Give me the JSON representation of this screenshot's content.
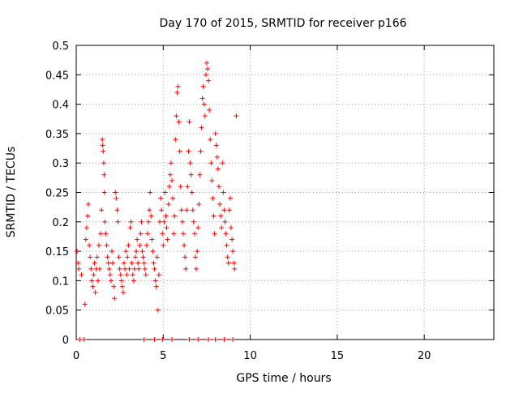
{
  "chart_data": {
    "type": "scatter",
    "title": "Day 170 of 2015, SRMTID for receiver p166",
    "xlabel": "GPS time / hours",
    "ylabel": "SRMTID / TECUs",
    "xlim": [
      0,
      24
    ],
    "ylim": [
      0,
      0.5
    ],
    "grid": true,
    "xticks": [
      0,
      5,
      10,
      15,
      20
    ],
    "xtick_labels": [
      "0",
      "5",
      "10",
      "15",
      "20"
    ],
    "yticks": [
      0,
      0.05,
      0.1,
      0.15,
      0.2,
      0.25,
      0.3,
      0.35,
      0.4,
      0.45,
      0.5
    ],
    "ytick_labels": [
      "0",
      "0.05",
      "0.1",
      "0.15",
      "0.2",
      "0.25",
      "0.3",
      "0.35",
      "0.4",
      "0.45",
      "0.5"
    ],
    "marker": "+",
    "color": "#ff0000",
    "series": [
      {
        "name": "SRMTID",
        "points": [
          [
            0.05,
            0.15
          ],
          [
            0.1,
            0.13
          ],
          [
            0.15,
            0.12
          ],
          [
            0.3,
            0.11
          ],
          [
            0.5,
            0.06
          ],
          [
            0.55,
            0.17
          ],
          [
            0.6,
            0.19
          ],
          [
            0.65,
            0.21
          ],
          [
            0.7,
            0.23
          ],
          [
            0.75,
            0.16
          ],
          [
            0.8,
            0.14
          ],
          [
            0.85,
            0.12
          ],
          [
            0.9,
            0.1
          ],
          [
            0.95,
            0.09
          ],
          [
            1.0,
            0.11
          ],
          [
            1.05,
            0.13
          ],
          [
            1.1,
            0.08
          ],
          [
            1.15,
            0.12
          ],
          [
            1.2,
            0.14
          ],
          [
            1.25,
            0.1
          ],
          [
            1.3,
            0.16
          ],
          [
            1.35,
            0.12
          ],
          [
            1.4,
            0.18
          ],
          [
            1.45,
            0.22
          ],
          [
            1.5,
            0.34
          ],
          [
            1.52,
            0.33
          ],
          [
            1.55,
            0.32
          ],
          [
            1.58,
            0.3
          ],
          [
            1.6,
            0.28
          ],
          [
            1.62,
            0.25
          ],
          [
            1.65,
            0.2
          ],
          [
            1.7,
            0.18
          ],
          [
            1.75,
            0.16
          ],
          [
            1.8,
            0.14
          ],
          [
            1.85,
            0.13
          ],
          [
            1.9,
            0.12
          ],
          [
            1.95,
            0.11
          ],
          [
            2.0,
            0.1
          ],
          [
            2.05,
            0.15
          ],
          [
            2.1,
            0.13
          ],
          [
            2.15,
            0.09
          ],
          [
            2.2,
            0.07
          ],
          [
            2.25,
            0.25
          ],
          [
            2.3,
            0.24
          ],
          [
            2.35,
            0.22
          ],
          [
            2.4,
            0.2
          ],
          [
            2.45,
            0.14
          ],
          [
            2.5,
            0.12
          ],
          [
            2.55,
            0.11
          ],
          [
            2.6,
            0.1
          ],
          [
            2.65,
            0.09
          ],
          [
            2.7,
            0.08
          ],
          [
            2.75,
            0.13
          ],
          [
            2.8,
            0.12
          ],
          [
            2.85,
            0.15
          ],
          [
            2.9,
            0.11
          ],
          [
            2.95,
            0.14
          ],
          [
            3.0,
            0.16
          ],
          [
            3.05,
            0.12
          ],
          [
            3.1,
            0.19
          ],
          [
            3.15,
            0.2
          ],
          [
            3.2,
            0.13
          ],
          [
            3.25,
            0.11
          ],
          [
            3.3,
            0.1
          ],
          [
            3.35,
            0.12
          ],
          [
            3.4,
            0.14
          ],
          [
            3.45,
            0.15
          ],
          [
            3.5,
            0.17
          ],
          [
            3.55,
            0.13
          ],
          [
            3.6,
            0.12
          ],
          [
            3.65,
            0.16
          ],
          [
            3.7,
            0.18
          ],
          [
            3.75,
            0.2
          ],
          [
            3.8,
            0.15
          ],
          [
            3.85,
            0.14
          ],
          [
            3.9,
            0.13
          ],
          [
            3.95,
            0.12
          ],
          [
            4.0,
            0.11
          ],
          [
            4.05,
            0.16
          ],
          [
            4.1,
            0.18
          ],
          [
            4.15,
            0.2
          ],
          [
            4.2,
            0.22
          ],
          [
            4.25,
            0.25
          ],
          [
            4.3,
            0.21
          ],
          [
            4.35,
            0.17
          ],
          [
            4.4,
            0.15
          ],
          [
            4.45,
            0.13
          ],
          [
            4.5,
            0.12
          ],
          [
            4.55,
            0.1
          ],
          [
            4.6,
            0.09
          ],
          [
            4.65,
            0.14
          ],
          [
            4.7,
            0.05
          ],
          [
            4.75,
            0.11
          ],
          [
            4.8,
            0.2
          ],
          [
            4.85,
            0.24
          ],
          [
            4.9,
            0.22
          ],
          [
            4.95,
            0.18
          ],
          [
            5.0,
            0.16
          ],
          [
            5.05,
            0.2
          ],
          [
            5.1,
            0.25
          ],
          [
            5.15,
            0.21
          ],
          [
            5.2,
            0.19
          ],
          [
            5.25,
            0.17
          ],
          [
            5.3,
            0.23
          ],
          [
            5.35,
            0.26
          ],
          [
            5.4,
            0.28
          ],
          [
            5.45,
            0.3
          ],
          [
            5.5,
            0.27
          ],
          [
            5.55,
            0.24
          ],
          [
            5.6,
            0.18
          ],
          [
            5.65,
            0.21
          ],
          [
            5.7,
            0.34
          ],
          [
            5.75,
            0.38
          ],
          [
            5.8,
            0.42
          ],
          [
            5.85,
            0.43
          ],
          [
            5.9,
            0.37
          ],
          [
            5.95,
            0.32
          ],
          [
            6.0,
            0.26
          ],
          [
            6.05,
            0.22
          ],
          [
            6.1,
            0.2
          ],
          [
            6.15,
            0.18
          ],
          [
            6.2,
            0.16
          ],
          [
            6.25,
            0.14
          ],
          [
            6.3,
            0.12
          ],
          [
            6.35,
            0.22
          ],
          [
            6.4,
            0.26
          ],
          [
            6.45,
            0.32
          ],
          [
            6.5,
            0.37
          ],
          [
            6.55,
            0.3
          ],
          [
            6.6,
            0.28
          ],
          [
            6.65,
            0.25
          ],
          [
            6.7,
            0.22
          ],
          [
            6.75,
            0.2
          ],
          [
            6.8,
            0.18
          ],
          [
            6.85,
            0.14
          ],
          [
            6.9,
            0.12
          ],
          [
            6.95,
            0.15
          ],
          [
            7.0,
            0.19
          ],
          [
            7.05,
            0.23
          ],
          [
            7.1,
            0.28
          ],
          [
            7.15,
            0.32
          ],
          [
            7.2,
            0.36
          ],
          [
            7.25,
            0.41
          ],
          [
            7.3,
            0.43
          ],
          [
            7.35,
            0.4
          ],
          [
            7.4,
            0.38
          ],
          [
            7.45,
            0.45
          ],
          [
            7.5,
            0.47
          ],
          [
            7.55,
            0.46
          ],
          [
            7.6,
            0.44
          ],
          [
            7.65,
            0.39
          ],
          [
            7.7,
            0.34
          ],
          [
            7.75,
            0.3
          ],
          [
            7.8,
            0.27
          ],
          [
            7.85,
            0.24
          ],
          [
            7.9,
            0.21
          ],
          [
            7.95,
            0.18
          ],
          [
            8.0,
            0.35
          ],
          [
            8.05,
            0.33
          ],
          [
            8.1,
            0.31
          ],
          [
            8.15,
            0.29
          ],
          [
            8.2,
            0.26
          ],
          [
            8.25,
            0.23
          ],
          [
            8.3,
            0.21
          ],
          [
            8.35,
            0.19
          ],
          [
            8.4,
            0.3
          ],
          [
            8.45,
            0.25
          ],
          [
            8.5,
            0.22
          ],
          [
            8.55,
            0.2
          ],
          [
            8.6,
            0.18
          ],
          [
            8.65,
            0.16
          ],
          [
            8.7,
            0.14
          ],
          [
            8.75,
            0.13
          ],
          [
            8.8,
            0.22
          ],
          [
            8.85,
            0.24
          ],
          [
            8.9,
            0.19
          ],
          [
            8.95,
            0.17
          ],
          [
            9.0,
            0.15
          ],
          [
            9.05,
            0.13
          ],
          [
            9.1,
            0.12
          ],
          [
            9.2,
            0.38
          ],
          [
            0.2,
            0
          ],
          [
            0.45,
            0
          ],
          [
            3.9,
            0
          ],
          [
            4.5,
            0
          ],
          [
            4.95,
            0
          ],
          [
            5.5,
            0
          ],
          [
            6.5,
            0
          ],
          [
            7.0,
            0
          ],
          [
            7.6,
            0
          ],
          [
            8.0,
            0
          ],
          [
            8.5,
            0
          ],
          [
            9.0,
            0
          ]
        ]
      }
    ]
  }
}
